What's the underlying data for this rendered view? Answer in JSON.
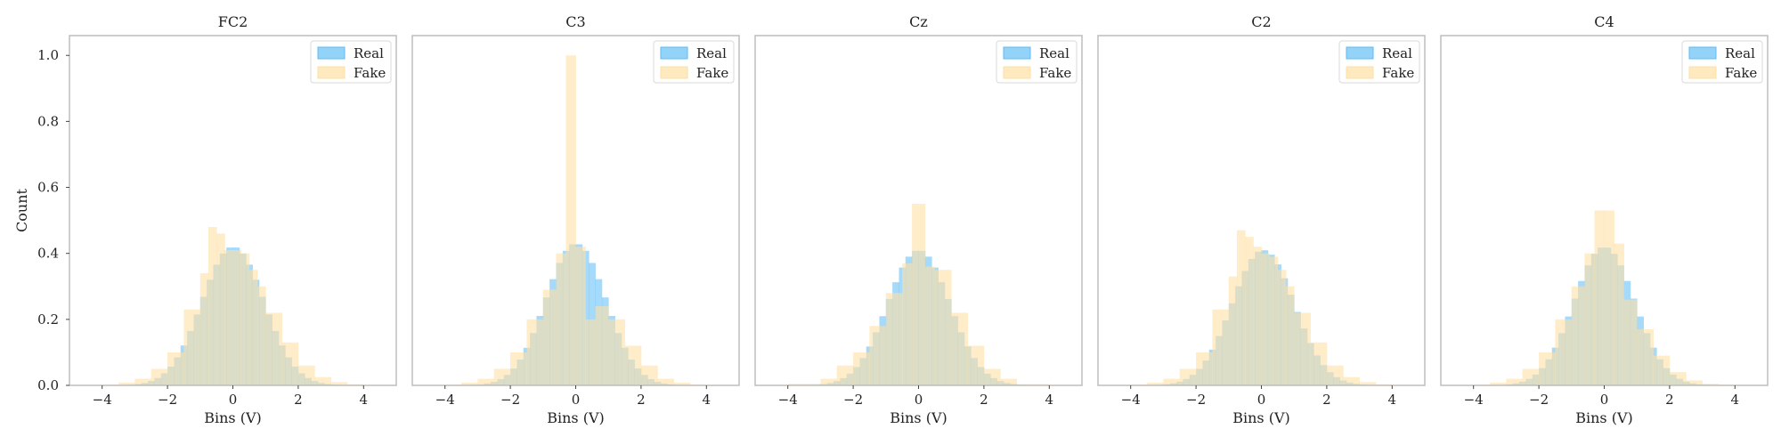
{
  "chart_data": {
    "type": "histogram",
    "ylabel": "Count",
    "ylim": [
      0,
      1.06
    ],
    "yticks": [
      0.0,
      0.2,
      0.4,
      0.6,
      0.8,
      1.0
    ],
    "ytick_labels": [
      "0.0",
      "0.2",
      "0.4",
      "0.6",
      "0.8",
      "1.0"
    ],
    "xlim": [
      -5.0,
      5.0
    ],
    "xticks": [
      -4,
      -2,
      0,
      2,
      4
    ],
    "xtick_labels": [
      "−4",
      "−2",
      "0",
      "2",
      "4"
    ],
    "legend_placement": "top-right",
    "grid": false,
    "series_style": [
      {
        "name": "Real",
        "color": "#5bbbf5",
        "alpha": 0.55
      },
      {
        "name": "Fake",
        "color": "#ffdfa3",
        "alpha": 0.6
      }
    ],
    "panels": [
      {
        "title": "FC2",
        "xlabel": "Bins (V)",
        "real": {
          "kind": "gauss",
          "mu": 0.0,
          "sigma": 0.95,
          "peak": 0.42,
          "bin": 0.2,
          "from": -3.6,
          "to": 3.6
        },
        "fake": {
          "kind": "steps",
          "edges": [
            -4.0,
            -3.5,
            -3.0,
            -2.5,
            -2.0,
            -1.5,
            -1.0,
            -0.75,
            -0.5,
            -0.25,
            0.0,
            0.25,
            0.5,
            0.75,
            1.0,
            1.5,
            2.0,
            2.5,
            3.0,
            3.5,
            4.0
          ],
          "heights": [
            0.002,
            0.008,
            0.02,
            0.05,
            0.1,
            0.23,
            0.34,
            0.48,
            0.46,
            0.41,
            0.41,
            0.4,
            0.35,
            0.3,
            0.22,
            0.13,
            0.06,
            0.025,
            0.01,
            0.003
          ]
        }
      },
      {
        "title": "C3",
        "xlabel": "Bins (V)",
        "real": {
          "kind": "gauss",
          "mu": 0.0,
          "sigma": 0.92,
          "peak": 0.43,
          "bin": 0.2,
          "from": -3.6,
          "to": 3.6
        },
        "fake": {
          "kind": "steps",
          "edges": [
            -4.0,
            -3.5,
            -3.0,
            -2.5,
            -2.0,
            -1.5,
            -1.0,
            -0.6,
            -0.3,
            0.0,
            0.3,
            0.6,
            1.0,
            1.5,
            2.0,
            2.5,
            3.0,
            3.5,
            4.0
          ],
          "heights": [
            0.002,
            0.008,
            0.02,
            0.05,
            0.1,
            0.2,
            0.29,
            0.4,
            1.0,
            0.42,
            0.2,
            0.24,
            0.2,
            0.12,
            0.06,
            0.02,
            0.008,
            0.002
          ]
        }
      },
      {
        "title": "Cz",
        "xlabel": "Bins (V)",
        "real": {
          "kind": "gauss",
          "mu": 0.0,
          "sigma": 0.95,
          "peak": 0.41,
          "bin": 0.2,
          "from": -3.6,
          "to": 3.6
        },
        "fake": {
          "kind": "steps",
          "edges": [
            -4.0,
            -3.0,
            -2.5,
            -2.0,
            -1.5,
            -1.0,
            -0.5,
            -0.2,
            0.2,
            0.5,
            1.0,
            1.5,
            2.0,
            2.5,
            3.0,
            4.0
          ],
          "heights": [
            0.005,
            0.02,
            0.06,
            0.1,
            0.18,
            0.28,
            0.37,
            0.55,
            0.36,
            0.35,
            0.22,
            0.12,
            0.05,
            0.02,
            0.004
          ]
        }
      },
      {
        "title": "C2",
        "xlabel": "Bins (V)",
        "real": {
          "kind": "gauss",
          "mu": 0.05,
          "sigma": 0.95,
          "peak": 0.41,
          "bin": 0.2,
          "from": -3.6,
          "to": 3.6
        },
        "fake": {
          "kind": "steps",
          "edges": [
            -4.0,
            -3.5,
            -3.0,
            -2.5,
            -2.0,
            -1.5,
            -1.0,
            -0.75,
            -0.5,
            -0.25,
            0.0,
            0.25,
            0.5,
            0.75,
            1.0,
            1.5,
            2.0,
            2.5,
            3.0,
            3.5,
            4.0
          ],
          "heights": [
            0.002,
            0.008,
            0.02,
            0.05,
            0.1,
            0.23,
            0.33,
            0.47,
            0.45,
            0.42,
            0.4,
            0.39,
            0.35,
            0.3,
            0.22,
            0.13,
            0.06,
            0.025,
            0.01,
            0.003
          ]
        }
      },
      {
        "title": "C4",
        "xlabel": "Bins (V)",
        "real": {
          "kind": "gauss",
          "mu": 0.0,
          "sigma": 0.93,
          "peak": 0.42,
          "bin": 0.2,
          "from": -3.6,
          "to": 3.6
        },
        "fake": {
          "kind": "steps",
          "edges": [
            -4.0,
            -3.5,
            -3.0,
            -2.5,
            -2.0,
            -1.5,
            -1.0,
            -0.6,
            -0.3,
            0.0,
            0.3,
            0.6,
            1.0,
            1.5,
            2.0,
            2.5,
            3.0,
            3.5,
            4.0
          ],
          "heights": [
            0.002,
            0.008,
            0.02,
            0.05,
            0.1,
            0.2,
            0.3,
            0.4,
            0.53,
            0.53,
            0.43,
            0.26,
            0.17,
            0.09,
            0.04,
            0.015,
            0.005,
            0.002
          ]
        }
      }
    ]
  }
}
